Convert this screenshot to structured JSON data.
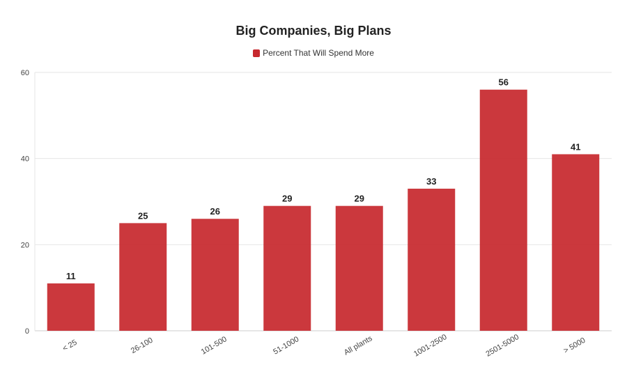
{
  "chart_data": {
    "type": "bar",
    "title": "Big Companies, Big Plans",
    "categories": [
      "< 25",
      "26-100",
      "101-500",
      "51-1000",
      "All plants",
      "1001-2500",
      "2501-5000",
      "> 5000"
    ],
    "series": [
      {
        "name": "Percent That Will Spend More",
        "values": [
          11,
          25,
          26,
          29,
          29,
          33,
          56,
          41
        ],
        "color": "#c7292e"
      }
    ],
    "yticks": [
      "0",
      "20",
      "40",
      "60"
    ],
    "ylim": [
      0,
      60
    ],
    "grid": true,
    "legend": "top-center"
  }
}
